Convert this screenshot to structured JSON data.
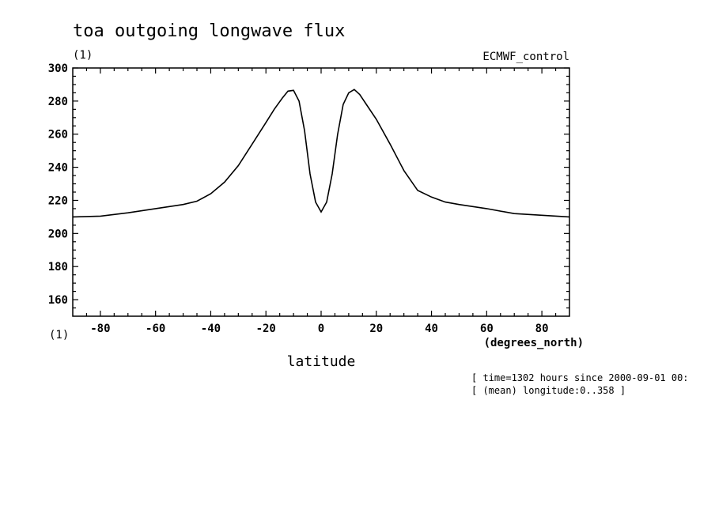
{
  "chart_data": {
    "type": "line",
    "title": "toa outgoing longwave flux",
    "y_unit_label": "(1)",
    "x_unit_label": "(1)",
    "experiment_label": "ECMWF_control",
    "xlabel": "latitude",
    "xunits": "(degrees_north)",
    "xlim": [
      -90,
      90
    ],
    "ylim": [
      150,
      300
    ],
    "x_ticks": [
      -80,
      -60,
      -40,
      -20,
      0,
      20,
      40,
      60,
      80
    ],
    "x_tick_labels": [
      "-80",
      "-60",
      "-40",
      "-20",
      "0",
      "20",
      "40",
      "60",
      "80"
    ],
    "y_ticks": [
      160,
      180,
      200,
      220,
      240,
      260,
      280,
      300
    ],
    "y_tick_labels": [
      "160",
      "180",
      "200",
      "220",
      "240",
      "260",
      "280",
      "300"
    ],
    "grid": false,
    "series": [
      {
        "x": [
          -90,
          -80,
          -70,
          -60,
          -50,
          -45,
          -40,
          -35,
          -30,
          -25,
          -20,
          -17,
          -14,
          -12,
          -10,
          -8,
          -6,
          -4,
          -2,
          0,
          2,
          4,
          6,
          8,
          10,
          12,
          14,
          16,
          20,
          25,
          30,
          35,
          40,
          45,
          50,
          60,
          70,
          80,
          90
        ],
        "y": [
          210,
          210.5,
          212.5,
          215,
          217.5,
          219.5,
          224,
          231,
          241,
          254,
          267,
          275,
          282,
          286,
          286.5,
          280,
          262,
          236,
          219,
          213,
          219,
          236,
          260,
          278,
          285,
          287,
          284,
          279,
          269,
          254,
          238,
          226,
          222,
          219,
          217.5,
          215,
          212,
          211,
          210
        ]
      }
    ]
  },
  "footnotes": {
    "time": "[ time=1302 hours since 2000-09-01 00:",
    "longitude": "[ (mean) longitude:0..358 ]"
  }
}
